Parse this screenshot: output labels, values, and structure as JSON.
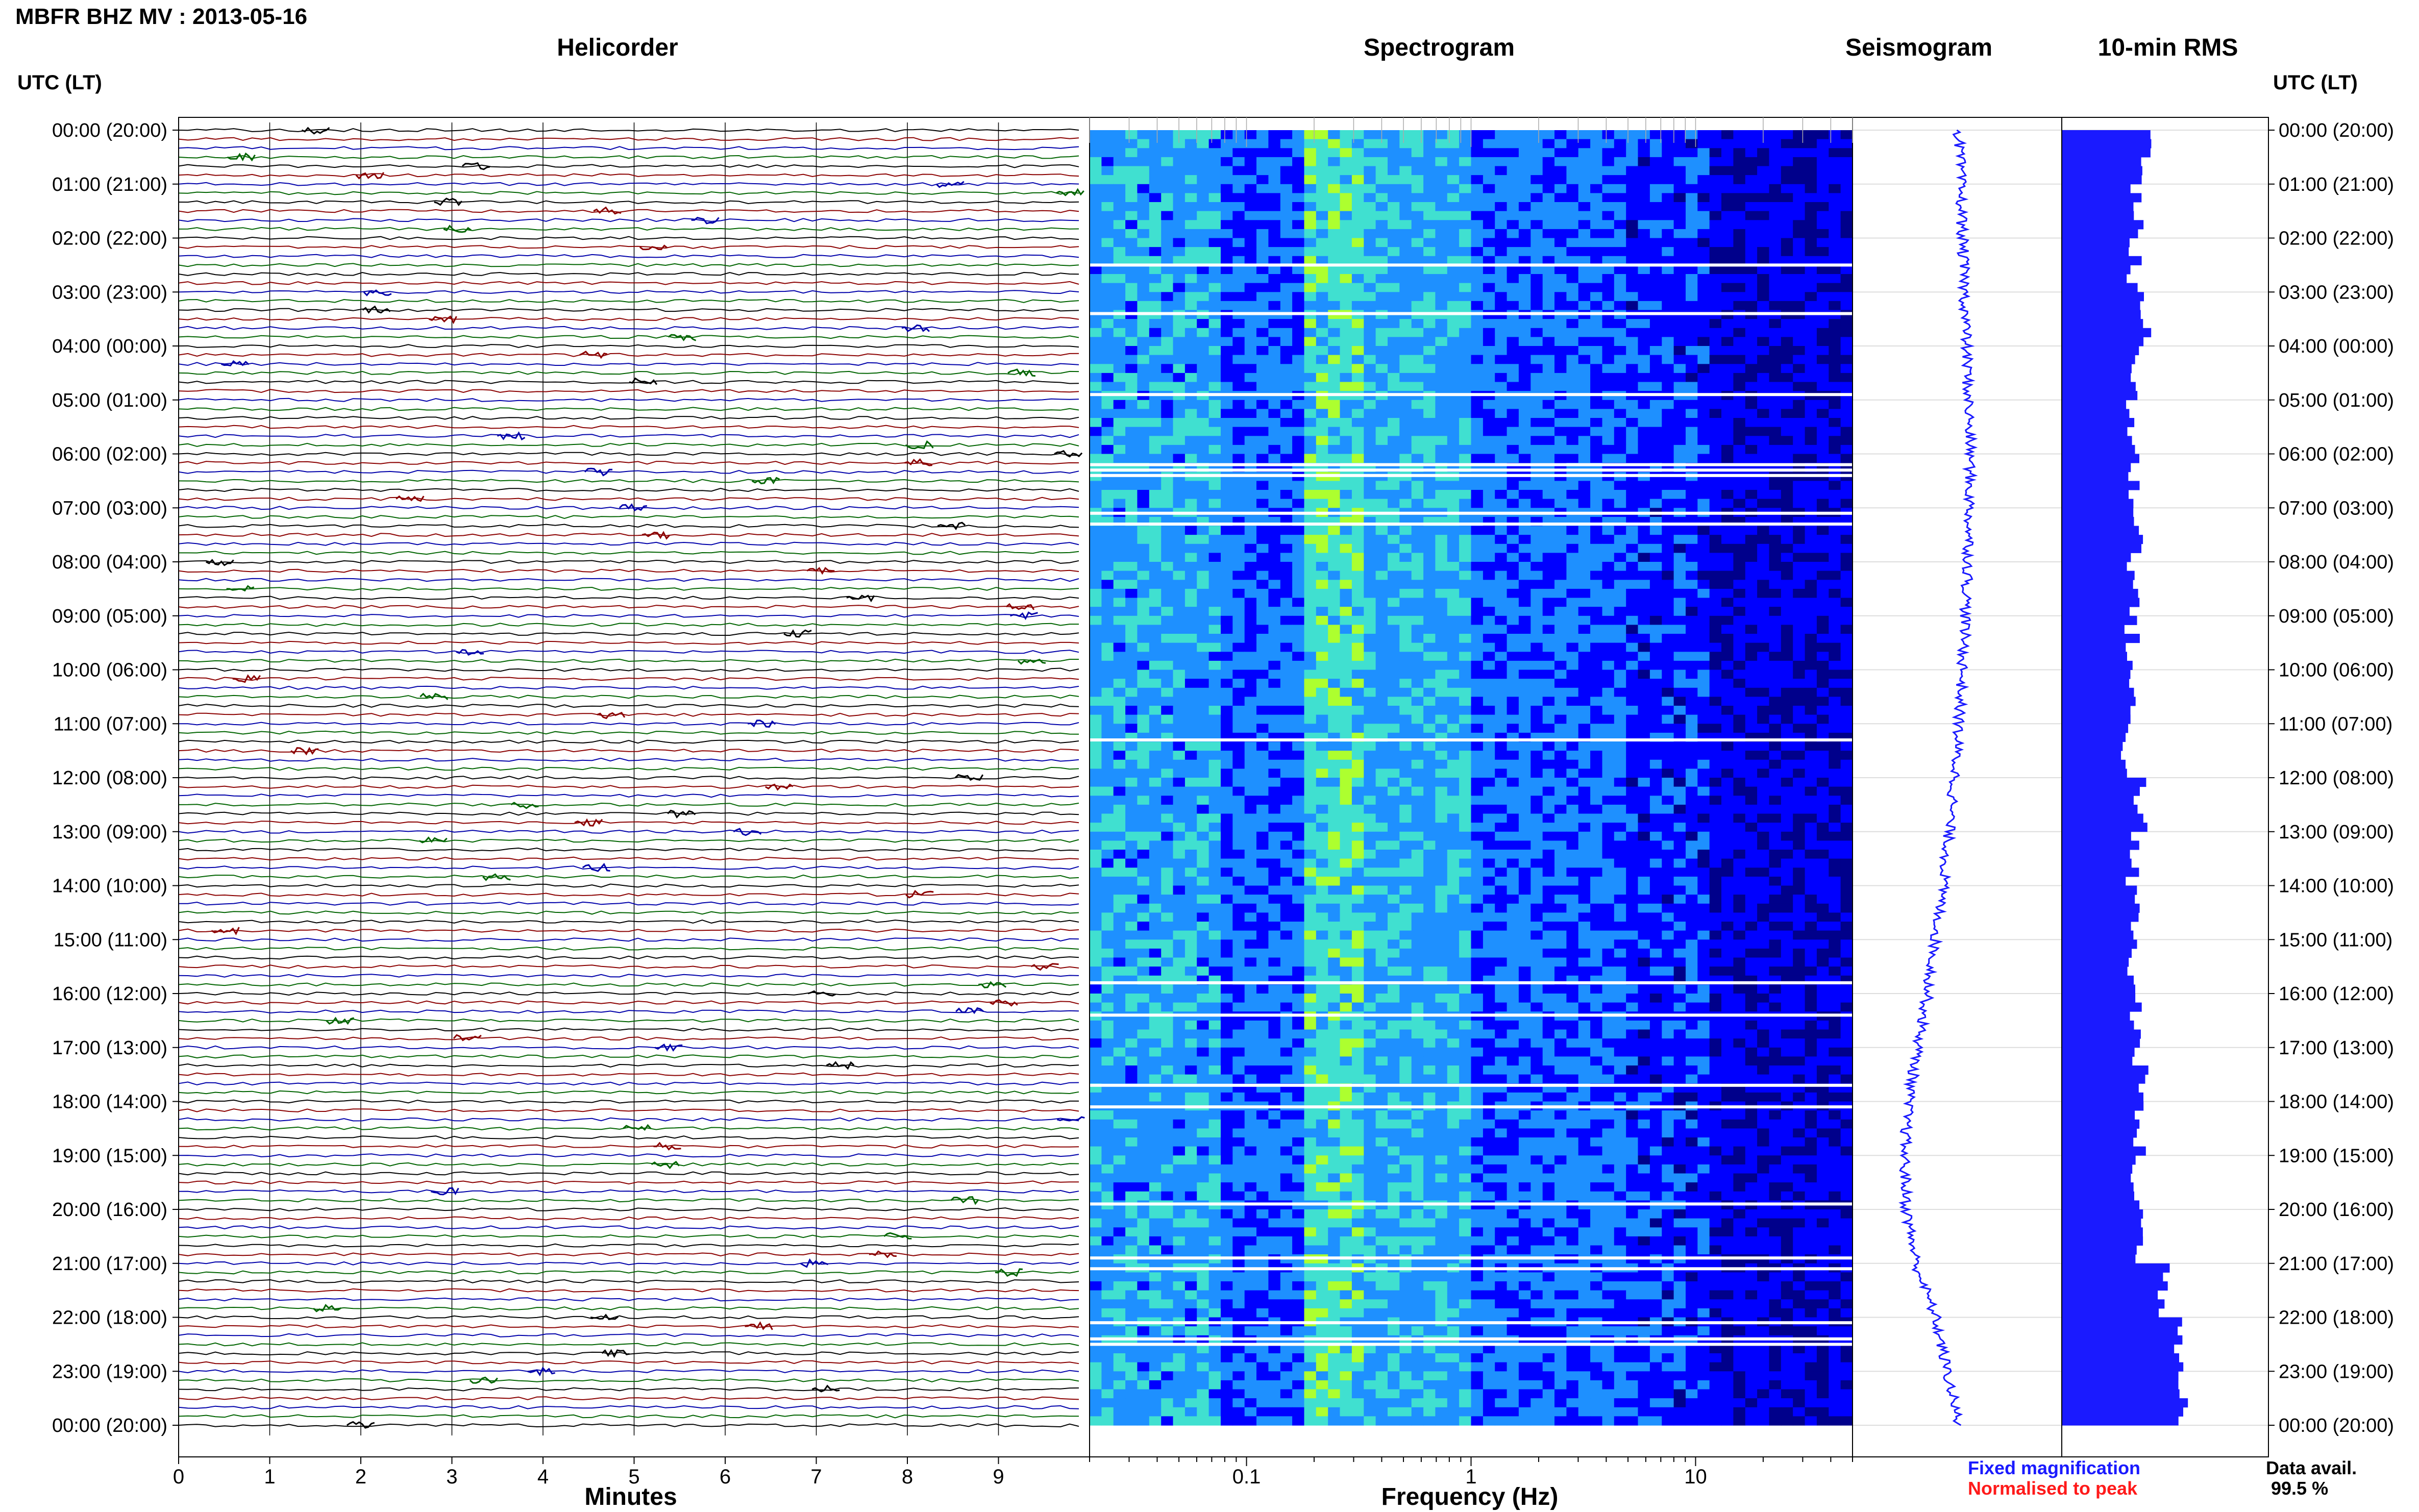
{
  "header": {
    "station_title": "MBFR BHZ MV : 2013-05-16",
    "tz_label_left": "UTC (LT)",
    "tz_label_right": "UTC (LT)"
  },
  "panels": {
    "helicorder": "Helicorder",
    "spectrogram": "Spectrogram",
    "seismogram": "Seismogram",
    "rms": "10-min RMS"
  },
  "axes": {
    "minutes_label": "Minutes",
    "frequency_label": "Frequency (Hz)"
  },
  "legend": {
    "fixed": "Fixed magnification",
    "normalised": "Normalised to peak",
    "fixed_color": "#1a1aff",
    "normalised_color": "#ff1a1a"
  },
  "availability": {
    "label": "Data avail.",
    "value": "99.5 %"
  },
  "chart_data": [
    {
      "type": "line",
      "title": "Helicorder",
      "xlabel": "Minutes",
      "x_ticks": [
        "0",
        "1",
        "2",
        "3",
        "4",
        "5",
        "6",
        "7",
        "8",
        "9"
      ],
      "xlim": [
        0,
        10
      ],
      "y_ticks": [
        "00:00 (20:00)",
        "01:00 (21:00)",
        "02:00 (22:00)",
        "03:00 (23:00)",
        "04:00 (00:00)",
        "05:00 (01:00)",
        "06:00 (02:00)",
        "07:00 (03:00)",
        "08:00 (04:00)",
        "09:00 (05:00)",
        "10:00 (06:00)",
        "11:00 (07:00)",
        "12:00 (08:00)",
        "13:00 (09:00)",
        "14:00 (10:00)",
        "15:00 (11:00)",
        "16:00 (12:00)",
        "17:00 (13:00)",
        "18:00 (14:00)",
        "19:00 (15:00)",
        "20:00 (16:00)",
        "21:00 (17:00)",
        "22:00 (18:00)",
        "23:00 (19:00)",
        "00:00 (20:00)"
      ],
      "trace_colors": [
        "#000000",
        "#8b0000",
        "#0000aa",
        "#006400"
      ],
      "lines_per_hour": 6,
      "grid": true
    },
    {
      "type": "heatmap",
      "title": "Spectrogram",
      "xlabel": "Frequency (Hz)",
      "x_scale": "log",
      "xlim": [
        0.02,
        50
      ],
      "x_ticks": [
        "0.1",
        "1",
        "10"
      ],
      "x_tick_values": [
        0.1,
        1,
        10
      ],
      "hours": 24,
      "peak_band_hz": [
        0.2,
        0.3
      ],
      "colormap": [
        "#00008b",
        "#0000ff",
        "#1e90ff",
        "#40e0d0",
        "#adff2f"
      ],
      "data_gaps_hours": [
        2.5,
        3.4,
        4.9,
        6.2,
        6.3,
        6.4,
        7.1,
        7.3,
        11.3,
        15.8,
        16.4,
        17.7,
        18.1,
        19.9,
        20.9,
        21.1,
        22.1,
        22.4,
        22.5
      ]
    },
    {
      "type": "line",
      "title": "Seismogram",
      "description_values_hours": [
        0,
        2,
        4,
        6,
        8,
        10,
        12,
        14,
        16,
        18,
        19,
        20,
        21,
        22,
        23,
        24
      ],
      "offset_values": [
        0.0,
        0.02,
        0.04,
        0.06,
        0.05,
        0.02,
        -0.02,
        -0.08,
        -0.16,
        -0.26,
        -0.28,
        -0.27,
        -0.22,
        -0.12,
        -0.06,
        0.0
      ],
      "color": "#1a1aff"
    },
    {
      "type": "bar",
      "title": "10-min RMS",
      "orientation": "horizontal",
      "bins_per_hour": 6,
      "hours": 24,
      "hourly_relative_levels": [
        0.42,
        0.36,
        0.35,
        0.4,
        0.35,
        0.34,
        0.35,
        0.37,
        0.35,
        0.34,
        0.33,
        0.32,
        0.38,
        0.34,
        0.35,
        0.34,
        0.36,
        0.38,
        0.37,
        0.36,
        0.38,
        0.5,
        0.58,
        0.6
      ],
      "color": "#1a1aff"
    }
  ]
}
